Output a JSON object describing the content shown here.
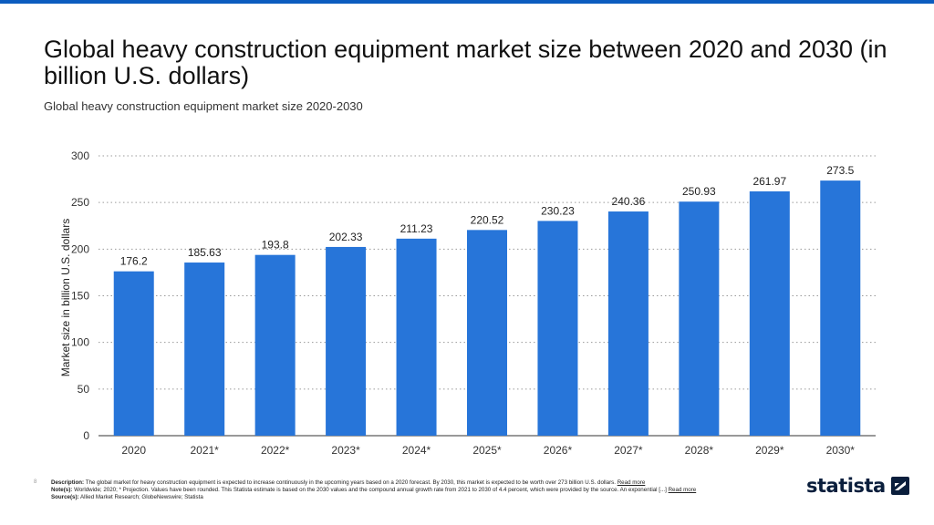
{
  "header": {
    "title": "Global heavy construction equipment market size between 2020 and 2030 (in billion U.S. dollars)",
    "subtitle": "Global heavy construction equipment market size 2020-2030"
  },
  "chart_data": {
    "type": "bar",
    "categories": [
      "2020",
      "2021*",
      "2022*",
      "2023*",
      "2024*",
      "2025*",
      "2026*",
      "2027*",
      "2028*",
      "2029*",
      "2030*"
    ],
    "values": [
      176.2,
      185.63,
      193.8,
      202.33,
      211.23,
      220.52,
      230.23,
      240.36,
      250.93,
      261.97,
      273.5
    ],
    "data_labels": [
      "176.2",
      "185.63",
      "193.8",
      "202.33",
      "211.23",
      "220.52",
      "230.23",
      "240.36",
      "250.93",
      "261.97",
      "273.5"
    ],
    "title": "",
    "xlabel": "",
    "ylabel": "Market size in billion U.S. dollars",
    "ylim": [
      0,
      300
    ],
    "yticks": [
      0,
      50,
      100,
      150,
      200,
      250,
      300
    ],
    "grid": true,
    "bar_color": "#2775d9"
  },
  "footer": {
    "index": "8",
    "description_label": "Description:",
    "description": "The global market for heavy construction equipment is expected to increase continuously in the upcoming years based on a 2020 forecast. By 2030, this market is expected to be worth over 273 billion U.S. dollars.",
    "notes_label": "Note(s):",
    "notes": "Worldwide; 2020; * Projection. Values have been rounded.  This Statista estimate is based on the 2030 values and the compound annual growth rate from 2021 to 2030 of 4.4 percent, which were provided by the source. An exponential [...]",
    "sources_label": "Source(s):",
    "sources": "Allied Market Research; GlobeNewswire; Statista",
    "read_more": "Read more"
  },
  "brand": {
    "name": "statista",
    "color": "#0a1e3c",
    "icon": "statista-logo-icon"
  }
}
